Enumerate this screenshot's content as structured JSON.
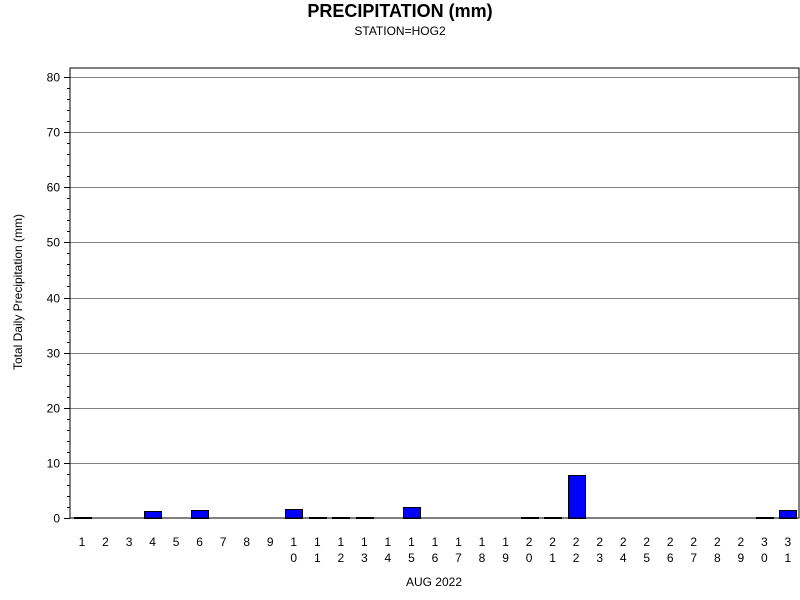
{
  "chart_data": {
    "type": "bar",
    "title": "PRECIPITATION (mm)",
    "subtitle": "STATION=HOG2",
    "xlabel": "AUG 2022",
    "ylabel": "Total Daily Precipitation (mm)",
    "ylim": [
      0,
      80
    ],
    "yticks": [
      0,
      10,
      20,
      30,
      40,
      50,
      60,
      70,
      80
    ],
    "grid": true,
    "legend": "none",
    "bar_color": "#0000ff",
    "categories": [
      "1",
      "2",
      "3",
      "4",
      "5",
      "6",
      "7",
      "8",
      "9",
      "10",
      "11",
      "12",
      "13",
      "14",
      "15",
      "16",
      "17",
      "18",
      "19",
      "20",
      "21",
      "22",
      "23",
      "24",
      "25",
      "26",
      "27",
      "28",
      "29",
      "30",
      "31"
    ],
    "values": [
      0.1,
      0,
      0,
      1.3,
      0,
      1.5,
      0,
      0,
      0,
      1.7,
      0.1,
      0.1,
      0.1,
      0,
      2.0,
      0,
      0,
      0,
      0,
      0.1,
      0.1,
      7.8,
      0,
      0,
      0,
      0,
      0,
      0,
      0,
      0.1,
      1.5
    ]
  }
}
